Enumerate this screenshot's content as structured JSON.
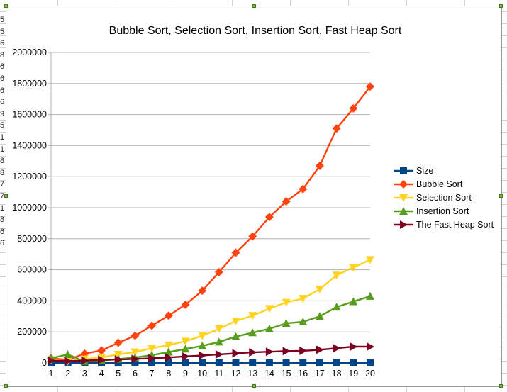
{
  "chart_data": {
    "type": "line",
    "title": "Bubble Sort, Selection Sort, Insertion Sort, Fast Heap Sort",
    "xlabel": "",
    "ylabel": "",
    "categories": [
      "1",
      "2",
      "3",
      "4",
      "5",
      "6",
      "7",
      "8",
      "9",
      "10",
      "11",
      "12",
      "13",
      "14",
      "15",
      "16",
      "17",
      "18",
      "19",
      "20"
    ],
    "ylim": [
      0,
      2000000
    ],
    "yticks": [
      "0",
      "200000",
      "400000",
      "600000",
      "800000",
      "1000000",
      "1200000",
      "1400000",
      "1600000",
      "1800000",
      "2000000"
    ],
    "ytick_values": [
      0,
      200000,
      400000,
      600000,
      800000,
      1000000,
      1200000,
      1400000,
      1600000,
      1800000,
      2000000
    ],
    "grid": true,
    "legend_position": "right",
    "series": [
      {
        "name": "Size",
        "color": "#004586",
        "marker": "square",
        "values": [
          10,
          20,
          30,
          40,
          50,
          60,
          70,
          80,
          90,
          100,
          110,
          120,
          130,
          140,
          150,
          160,
          170,
          180,
          190,
          200
        ]
      },
      {
        "name": "Bubble Sort",
        "color": "#ff420e",
        "marker": "diamond",
        "values": [
          30000,
          20000,
          60000,
          80000,
          130000,
          175000,
          240000,
          305000,
          375000,
          465000,
          585000,
          710000,
          815000,
          940000,
          1040000,
          1120000,
          1270000,
          1510000,
          1640000,
          1780000
        ]
      },
      {
        "name": "Selection Sort",
        "color": "#ffd320",
        "marker": "triangle-down",
        "values": [
          20000,
          10000,
          25000,
          35000,
          55000,
          70000,
          95000,
          115000,
          140000,
          175000,
          220000,
          270000,
          305000,
          350000,
          390000,
          415000,
          475000,
          565000,
          615000,
          665000
        ]
      },
      {
        "name": "Insertion Sort",
        "color": "#579d1c",
        "marker": "triangle-up",
        "values": [
          30000,
          55000,
          10000,
          15000,
          25000,
          35000,
          50000,
          70000,
          90000,
          110000,
          135000,
          170000,
          195000,
          220000,
          255000,
          265000,
          300000,
          360000,
          395000,
          430000
        ]
      },
      {
        "name": "The Fast Heap Sort",
        "color": "#7e0021",
        "marker": "triangle-right",
        "values": [
          15000,
          12000,
          15000,
          20000,
          22000,
          26000,
          30000,
          35000,
          42000,
          48000,
          55000,
          62000,
          68000,
          72000,
          76000,
          78000,
          85000,
          95000,
          105000,
          105000
        ]
      }
    ]
  },
  "sheet": {
    "row_stubs": [
      "5",
      "5",
      "6",
      "8",
      "6",
      "6",
      "6",
      "6",
      "9",
      "5",
      "1",
      "1",
      "8",
      "8",
      "7",
      "7",
      "1",
      "8",
      "6",
      "6"
    ]
  }
}
